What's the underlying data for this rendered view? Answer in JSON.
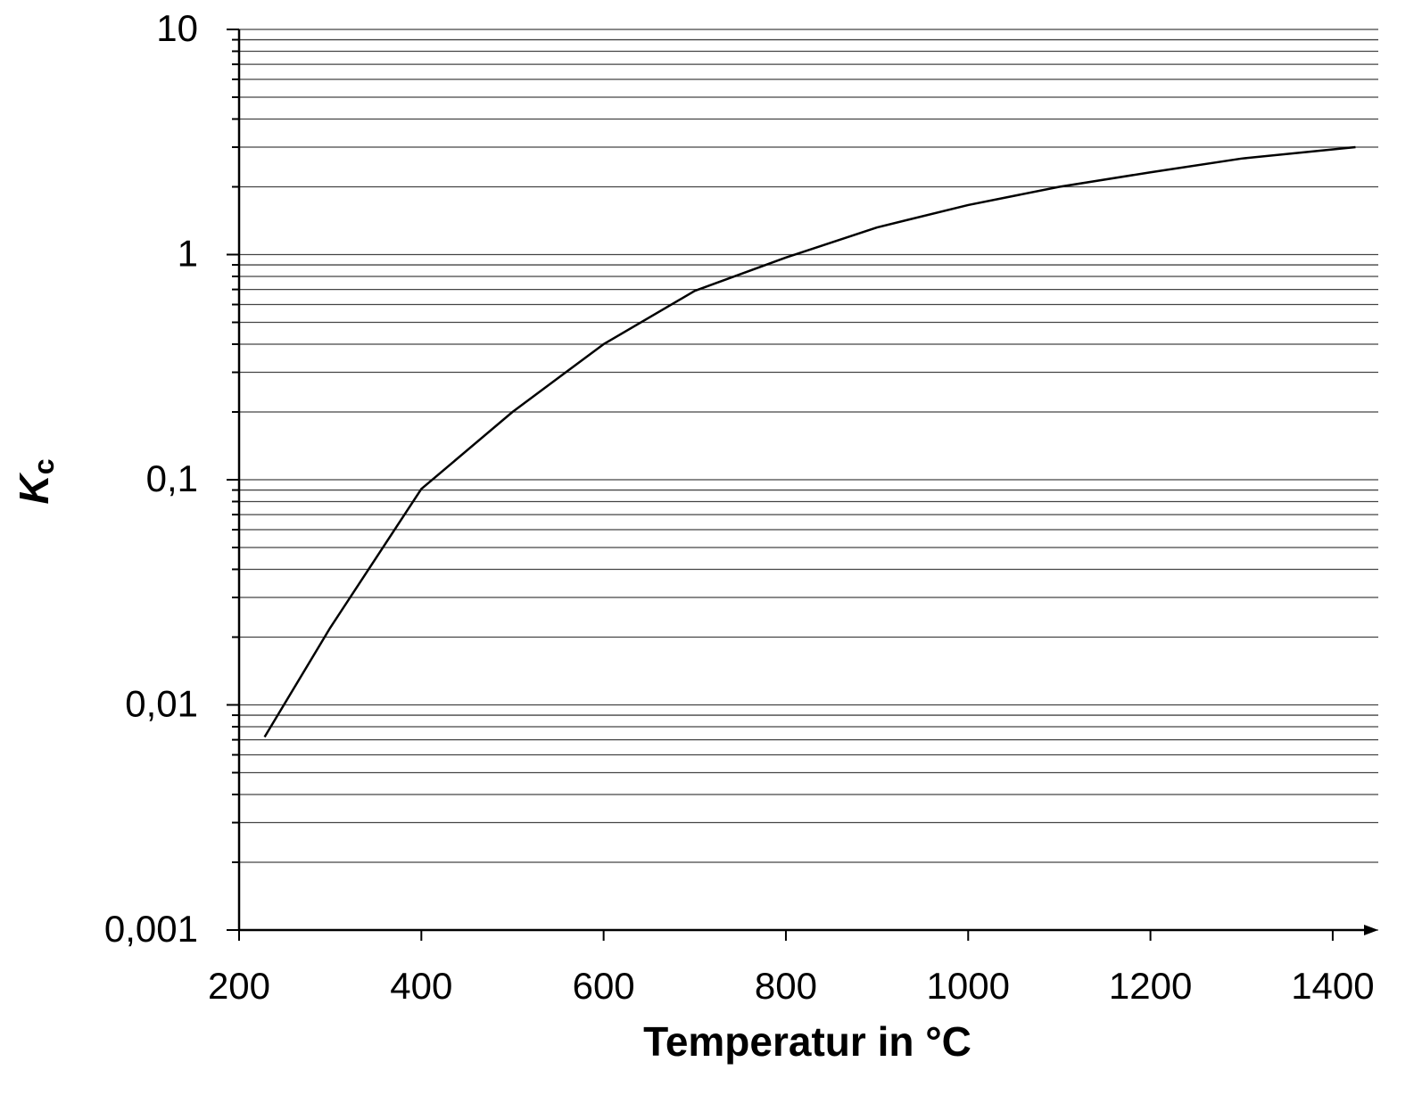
{
  "chart_data": {
    "type": "line",
    "xlabel": "Temperatur in °C",
    "ylabel": "K",
    "ylabel_subscript": "c",
    "x": [
      228,
      300,
      400,
      500,
      600,
      700,
      800,
      900,
      1000,
      1100,
      1200,
      1300,
      1425
    ],
    "series": [
      {
        "color": "#000000",
        "values": [
          0.0072,
          0.022,
          0.091,
          0.2,
          0.4,
          0.69,
          0.97,
          1.32,
          1.66,
          2.0,
          2.32,
          2.67,
          3.0
        ]
      }
    ],
    "xlim": [
      200,
      1450
    ],
    "xticks": [
      200,
      400,
      600,
      800,
      1000,
      1200,
      1400
    ],
    "ylim": [
      0.001,
      10
    ],
    "yscale": "log",
    "yticks": [
      {
        "value": 0.001,
        "label": "0,001"
      },
      {
        "value": 0.01,
        "label": "0,01"
      },
      {
        "value": 0.1,
        "label": "0,1"
      },
      1,
      10
    ],
    "minor_yticks": [
      0.002,
      0.003,
      0.004,
      0.005,
      0.006,
      0.007,
      0.008,
      0.009,
      0.02,
      0.03,
      0.04,
      0.05,
      0.06,
      0.07,
      0.08,
      0.09,
      0.2,
      0.3,
      0.4,
      0.5,
      0.6,
      0.7,
      0.8,
      0.9,
      2,
      3,
      4,
      5,
      6,
      7,
      8,
      9
    ],
    "grid": true
  }
}
